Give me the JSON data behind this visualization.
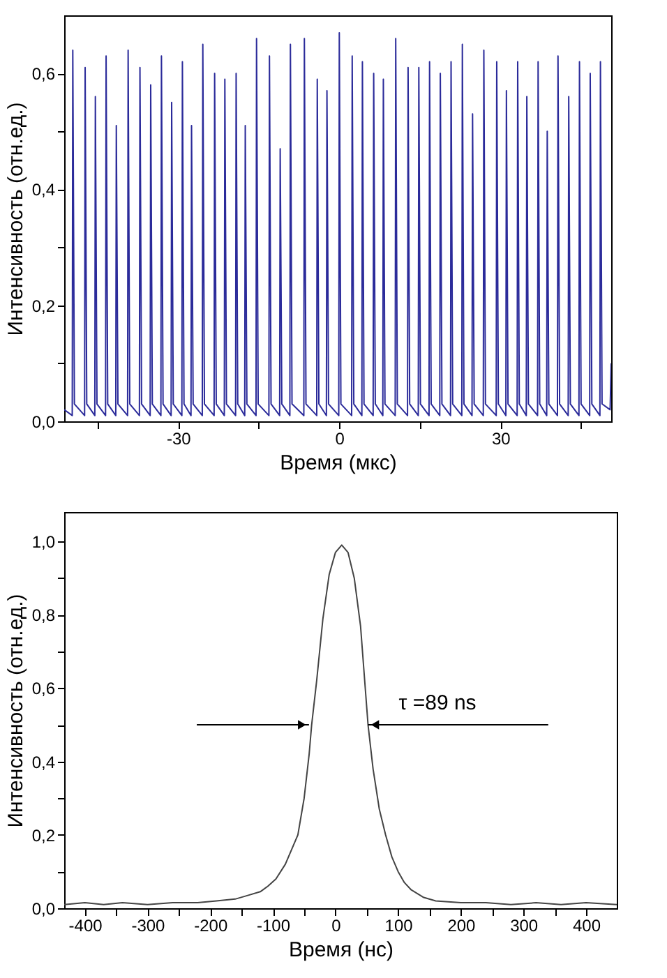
{
  "chart_data": [
    {
      "type": "line",
      "xlabel": "Время (мкс)",
      "ylabel": "Интенсивность (отн.ед.)",
      "xlim": [
        -51.2,
        50.6
      ],
      "ylim": [
        0,
        0.7
      ],
      "xticks": [
        {
          "value": -45,
          "label": null
        },
        -30,
        {
          "value": -15,
          "label": null
        },
        0,
        {
          "value": 15,
          "label": null
        },
        30,
        {
          "value": 45,
          "label": null
        }
      ],
      "yticks": [
        {
          "value": 0,
          "label": "0,0"
        },
        {
          "value": 0.1,
          "label": null
        },
        {
          "value": 0.2,
          "label": "0,2"
        },
        {
          "value": 0.3,
          "label": null
        },
        {
          "value": 0.4,
          "label": "0,4"
        },
        {
          "value": 0.5,
          "label": null
        },
        {
          "value": 0.6,
          "label": "0,6"
        }
      ],
      "x": [
        -51.2,
        -49.7,
        -49.6,
        -49.3,
        -47.4,
        -47.3,
        -47.0,
        -45.5,
        -45.4,
        -45.1,
        -43.5,
        -43.4,
        -43.1,
        -41.6,
        -41.5,
        -41.2,
        -39.4,
        -39.3,
        -39.0,
        -37.2,
        -37.1,
        -36.8,
        -35.2,
        -35.1,
        -34.8,
        -33.2,
        -33.1,
        -32.8,
        -31.3,
        -31.2,
        -30.9,
        -29.3,
        -29.2,
        -28.9,
        -27.6,
        -27.5,
        -27.2,
        -25.5,
        -25.4,
        -25.1,
        -23.3,
        -23.2,
        -22.9,
        -21.4,
        -21.3,
        -21.0,
        -19.3,
        -19.2,
        -18.9,
        -17.6,
        -17.5,
        -17.2,
        -15.5,
        -15.4,
        -15.1,
        -13.1,
        -13.0,
        -12.7,
        -11.1,
        -11.0,
        -10.7,
        -9.2,
        -9.1,
        -8.8,
        -6.6,
        -6.5,
        -6.2,
        -4.2,
        -4.1,
        -3.8,
        -2.4,
        -2.3,
        -2.0,
        -0.1,
        0.0,
        0.3,
        2.3,
        2.4,
        2.7,
        4.2,
        4.3,
        4.6,
        6.3,
        6.4,
        6.7,
        8.1,
        8.2,
        8.5,
        10.4,
        10.5,
        10.8,
        12.7,
        12.8,
        13.1,
        14.7,
        14.8,
        15.1,
        16.7,
        16.8,
        17.1,
        18.7,
        18.8,
        19.1,
        20.7,
        20.8,
        21.1,
        22.8,
        22.9,
        23.2,
        24.7,
        24.8,
        25.1,
        26.8,
        26.9,
        27.2,
        29.2,
        29.3,
        29.6,
        31.0,
        31.1,
        31.4,
        33.1,
        33.2,
        33.5,
        34.8,
        34.9,
        35.2,
        36.9,
        37.0,
        37.3,
        38.6,
        38.7,
        39.0,
        40.6,
        40.7,
        41.0,
        42.6,
        42.7,
        43.0,
        44.6,
        44.7,
        45.0,
        46.6,
        46.7,
        47.0,
        48.5,
        48.6,
        48.9,
        50.4,
        50.6
      ],
      "series": [
        {
          "color": "#2b2b9a",
          "values": [
            0.02,
            0.01,
            0.64,
            0.03,
            0.01,
            0.61,
            0.03,
            0.01,
            0.56,
            0.03,
            0.01,
            0.63,
            0.03,
            0.01,
            0.51,
            0.03,
            0.01,
            0.64,
            0.03,
            0.01,
            0.61,
            0.03,
            0.01,
            0.58,
            0.03,
            0.01,
            0.63,
            0.03,
            0.01,
            0.55,
            0.03,
            0.01,
            0.62,
            0.03,
            0.01,
            0.51,
            0.03,
            0.01,
            0.65,
            0.03,
            0.01,
            0.6,
            0.03,
            0.01,
            0.59,
            0.03,
            0.01,
            0.6,
            0.03,
            0.01,
            0.51,
            0.03,
            0.01,
            0.66,
            0.03,
            0.01,
            0.63,
            0.03,
            0.01,
            0.47,
            0.03,
            0.01,
            0.65,
            0.03,
            0.01,
            0.66,
            0.03,
            0.01,
            0.59,
            0.03,
            0.01,
            0.57,
            0.03,
            0.01,
            0.67,
            0.03,
            0.01,
            0.63,
            0.03,
            0.01,
            0.62,
            0.03,
            0.01,
            0.6,
            0.03,
            0.01,
            0.59,
            0.03,
            0.01,
            0.66,
            0.03,
            0.01,
            0.61,
            0.03,
            0.01,
            0.61,
            0.03,
            0.01,
            0.62,
            0.03,
            0.01,
            0.6,
            0.03,
            0.01,
            0.62,
            0.03,
            0.01,
            0.65,
            0.03,
            0.01,
            0.53,
            0.03,
            0.01,
            0.64,
            0.03,
            0.01,
            0.62,
            0.03,
            0.01,
            0.57,
            0.03,
            0.01,
            0.62,
            0.03,
            0.01,
            0.56,
            0.03,
            0.01,
            0.62,
            0.03,
            0.01,
            0.5,
            0.03,
            0.01,
            0.63,
            0.03,
            0.01,
            0.56,
            0.03,
            0.01,
            0.62,
            0.03,
            0.01,
            0.6,
            0.03,
            0.01,
            0.62,
            0.03,
            0.02,
            0.1
          ]
        }
      ]
    },
    {
      "type": "line",
      "xlabel": "Время (нс)",
      "ylabel": "Интенсивность (отн.ед.)",
      "xlim": [
        -433,
        449
      ],
      "ylim": [
        0,
        1.08
      ],
      "xticks": [
        -400,
        {
          "value": -350,
          "label": null
        },
        -300,
        {
          "value": -250,
          "label": null
        },
        -200,
        {
          "value": -150,
          "label": null
        },
        -100,
        {
          "value": -50,
          "label": null
        },
        0,
        {
          "value": 50,
          "label": null
        },
        100,
        {
          "value": 150,
          "label": null
        },
        200,
        {
          "value": 250,
          "label": null
        },
        300,
        {
          "value": 350,
          "label": null
        },
        400
      ],
      "yticks": [
        {
          "value": 0,
          "label": "0,0"
        },
        {
          "value": 0.1,
          "label": null
        },
        {
          "value": 0.2,
          "label": "0,2"
        },
        {
          "value": 0.3,
          "label": null
        },
        {
          "value": 0.4,
          "label": "0,4"
        },
        {
          "value": 0.5,
          "label": null
        },
        {
          "value": 0.6,
          "label": "0,6"
        },
        {
          "value": 0.7,
          "label": null
        },
        {
          "value": 0.8,
          "label": "0,8"
        },
        {
          "value": 0.9,
          "label": null
        },
        {
          "value": 1.0,
          "label": "1,0"
        }
      ],
      "x": [
        -433,
        -400,
        -370,
        -340,
        -300,
        -260,
        -220,
        -190,
        -160,
        -140,
        -120,
        -108,
        -95,
        -80,
        -70,
        -60,
        -50,
        -42,
        -38,
        -30,
        -20,
        -10,
        0,
        10,
        20,
        30,
        40,
        52,
        60,
        70,
        80,
        90,
        100,
        110,
        121,
        140,
        160,
        200,
        240,
        280,
        320,
        360,
        400,
        449
      ],
      "series": [
        {
          "color": "#444444",
          "values": [
            0.01,
            0.015,
            0.01,
            0.015,
            0.01,
            0.015,
            0.015,
            0.02,
            0.025,
            0.035,
            0.045,
            0.06,
            0.08,
            0.12,
            0.16,
            0.2,
            0.3,
            0.42,
            0.5,
            0.62,
            0.79,
            0.91,
            0.97,
            0.99,
            0.97,
            0.9,
            0.77,
            0.5,
            0.38,
            0.27,
            0.2,
            0.14,
            0.1,
            0.07,
            0.05,
            0.03,
            0.02,
            0.015,
            0.015,
            0.01,
            0.015,
            0.01,
            0.015,
            0.01
          ]
        }
      ],
      "annotations": [
        {
          "text": "τ =89 ns",
          "x": 52,
          "y": 0.5
        }
      ]
    }
  ]
}
